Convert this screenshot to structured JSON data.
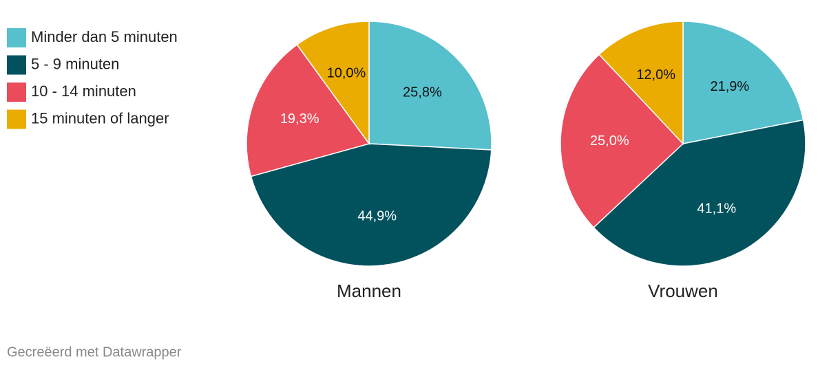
{
  "chart_data": {
    "type": "pie",
    "categories": [
      "Minder dan 5 minuten",
      "5 - 9 minuten",
      "10 - 14 minuten",
      "15 minuten of langer"
    ],
    "colors": [
      "#56c0cc",
      "#02525e",
      "#ea4c5b",
      "#eaac00"
    ],
    "series": [
      {
        "name": "Mannen",
        "values": [
          25.8,
          44.9,
          19.3,
          10.0
        ],
        "value_labels": [
          "25,8%",
          "44,9%",
          "19,3%",
          "10,0%"
        ]
      },
      {
        "name": "Vrouwen",
        "values": [
          21.9,
          41.1,
          25.0,
          12.0
        ],
        "value_labels": [
          "21,9%",
          "41,1%",
          "25,0%",
          "12,0%"
        ]
      }
    ]
  },
  "footer": "Gecreëerd met Datawrapper"
}
